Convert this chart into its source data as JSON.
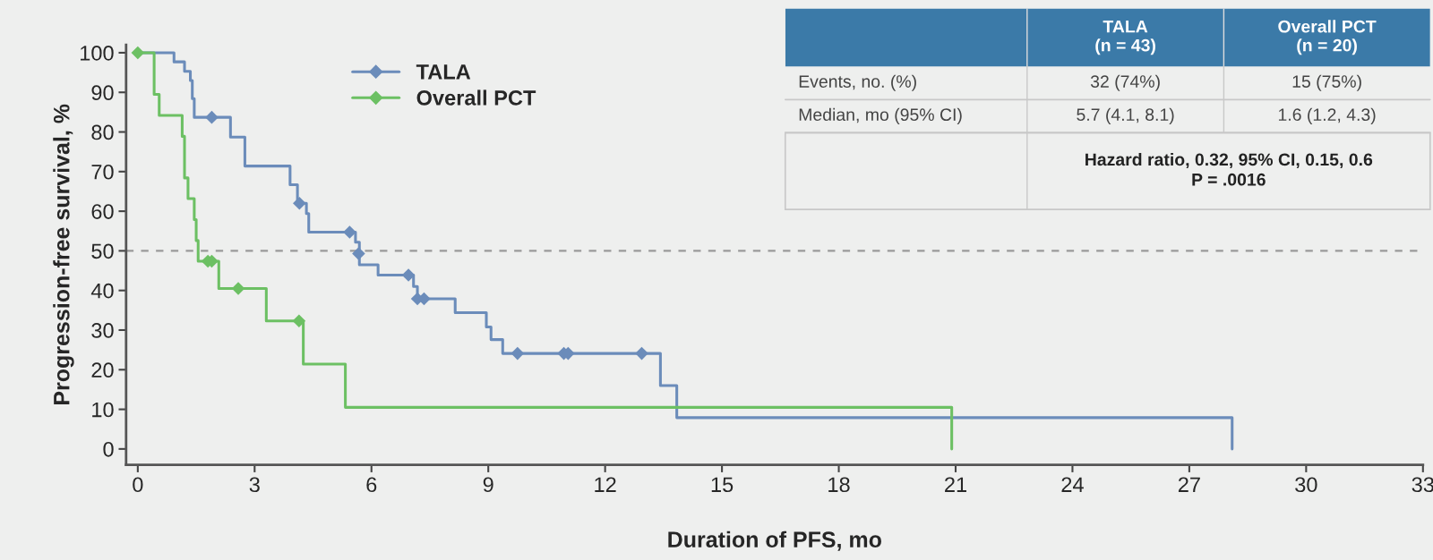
{
  "chart_data": {
    "type": "step",
    "xlabel": "Duration of PFS, mo",
    "ylabel": "Progression-free survival, %",
    "series": [
      {
        "name": "TALA",
        "color": "#6b8cba",
        "x": [
          0,
          0.93,
          1.2,
          1.35,
          1.4,
          1.45,
          2.38,
          2.75,
          3.91,
          4.1,
          4.33,
          4.39,
          5.59,
          5.69,
          6.17,
          7.08,
          7.18,
          8.15,
          8.95,
          9.07,
          9.37,
          13.42,
          13.84,
          28.1,
          28.1
        ],
        "values": [
          100,
          97.7,
          95.3,
          93.0,
          88.4,
          83.7,
          78.7,
          71.4,
          66.7,
          62.0,
          59.4,
          54.7,
          52.2,
          46.5,
          43.9,
          41.0,
          37.9,
          34.4,
          30.8,
          27.6,
          24.1,
          16.0,
          7.9,
          7.9,
          0
        ]
      },
      {
        "type": "scatter",
        "color": "#6b8cba",
        "marker": "diamond",
        "x": [
          1.9,
          4.15,
          5.44,
          5.67,
          6.95,
          7.18,
          7.35,
          9.75,
          10.94,
          11.05,
          12.94
        ],
        "values": [
          83.7,
          62.0,
          54.7,
          49.3,
          43.9,
          37.9,
          37.9,
          24.1,
          24.1,
          24.1,
          24.1
        ]
      },
      {
        "name": "Overall PCT",
        "color": "#6cc063",
        "x": [
          0,
          0.42,
          0.55,
          1.14,
          1.2,
          1.29,
          1.45,
          1.5,
          1.55,
          2.08,
          3.3,
          4.25,
          5.33,
          20.9,
          20.9
        ],
        "values": [
          100,
          89.5,
          84.2,
          78.9,
          68.4,
          63.2,
          57.9,
          52.6,
          47.4,
          40.5,
          32.3,
          21.4,
          10.5,
          10.5,
          0
        ]
      },
      {
        "type": "scatter",
        "color": "#6cc063",
        "marker": "diamond",
        "x": [
          0,
          1.8,
          1.9,
          2.58,
          4.14
        ],
        "values": [
          100,
          47.4,
          47.4,
          40.5,
          32.3
        ]
      }
    ],
    "xlim": [
      -0.3,
      33
    ],
    "xticks": [
      0,
      3,
      6,
      9,
      12,
      15,
      18,
      21,
      24,
      27,
      30,
      33
    ],
    "ylim": [
      -4,
      102
    ],
    "yticks": [
      0,
      10,
      20,
      30,
      40,
      50,
      60,
      70,
      80,
      90,
      100
    ],
    "ref_lines": [
      {
        "axis": "y",
        "value": 50,
        "color": "#9a9a9a",
        "line_style": "dashed"
      }
    ],
    "grid": false,
    "legend": "top left",
    "annotations": [
      "TALA\n(n = 43)",
      "Overall PCT\n(n = 20)",
      "Events, no. (%)",
      "32 (74%)",
      "15 (75%)",
      "Median, mo (95% CI)",
      "5.7 (4.1, 8.1)",
      "1.6 (1.2, 4.3)",
      "Hazard ratio, 0.32, 95% CI, 0.15, 0.6\nP = .0016"
    ]
  }
}
